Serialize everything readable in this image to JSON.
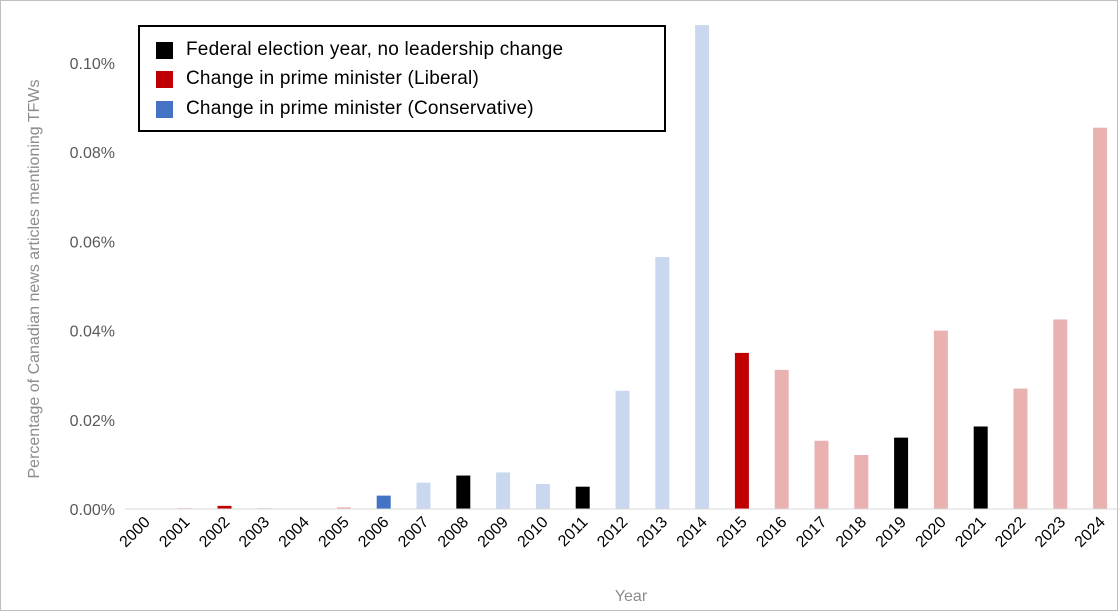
{
  "chart_data": {
    "type": "bar",
    "title": "",
    "xlabel": "Year",
    "ylabel": "Percentage of Canadian news articles mentioning TFWs",
    "ylim": [
      0,
      0.11
    ],
    "yticks": [
      "0.00%",
      "0.02%",
      "0.04%",
      "0.06%",
      "0.08%",
      "0.10%"
    ],
    "ytick_values": [
      0,
      0.02,
      0.04,
      0.06,
      0.08,
      0.1
    ],
    "grid": false,
    "legend_position": "top-left",
    "categories": [
      "2000",
      "2001",
      "2002",
      "2003",
      "2004",
      "2005",
      "2006",
      "2007",
      "2008",
      "2009",
      "2010",
      "2011",
      "2012",
      "2013",
      "2014",
      "2015",
      "2016",
      "2017",
      "2018",
      "2019",
      "2020",
      "2021",
      "2022",
      "2023",
      "2024"
    ],
    "values": [
      0,
      0.0002,
      0.0007,
      0.0002,
      0,
      0.0004,
      0.003,
      0.0059,
      0.0075,
      0.0082,
      0.0056,
      0.005,
      0.0265,
      0.0565,
      0.1085,
      0.035,
      0.0312,
      0.0153,
      0.0121,
      0.016,
      0.04,
      0.0185,
      0.027,
      0.0425,
      0.0855
    ],
    "bar_colors": [
      "#c9d8ef",
      "#f2c1c1",
      "#c00000",
      "#c9d8ef",
      "#c9d8ef",
      "#eeb5b5",
      "#4472c4",
      "#c9d8ef",
      "#000000",
      "#c9d8ef",
      "#c9d8ef",
      "#000000",
      "#c9d8ef",
      "#c9d8ef",
      "#c9d8ef",
      "#c00000",
      "#eab1b1",
      "#eab1b1",
      "#eab1b1",
      "#000000",
      "#eab1b1",
      "#000000",
      "#eab1b1",
      "#eab1b1",
      "#eab1b1"
    ],
    "legend": [
      {
        "label": "Federal election year, no  leadership change",
        "color": "#000000"
      },
      {
        "label": "Change in prime minister (Liberal)",
        "color": "#c00000"
      },
      {
        "label": "Change in prime minister (Conservative)",
        "color": "#4472c4"
      }
    ]
  }
}
